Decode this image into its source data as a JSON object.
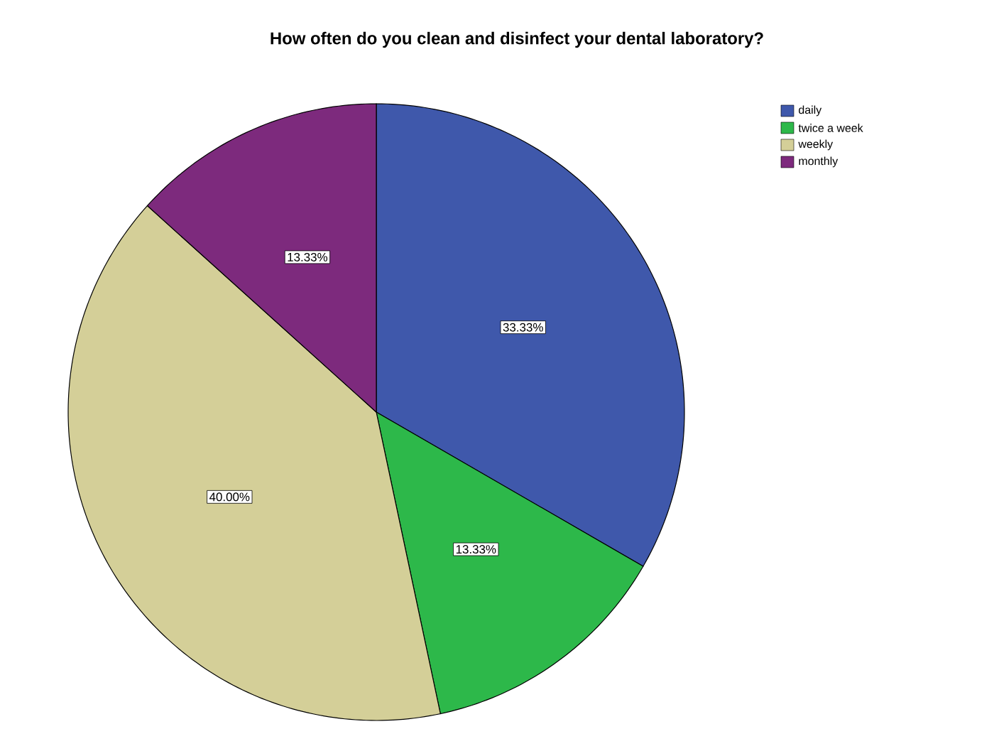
{
  "chart_data": {
    "type": "pie",
    "title": "How often do you clean and disinfect your dental laboratory?",
    "categories": [
      "daily",
      "twice a week",
      "weekly",
      "monthly"
    ],
    "values": [
      33.33,
      13.33,
      40.0,
      13.33
    ],
    "colors": [
      "#3f58ab",
      "#2db84a",
      "#d4cf98",
      "#7d2a7d"
    ],
    "value_labels": [
      "33.33%",
      "13.33%",
      "40.00%",
      "13.33%"
    ],
    "legend": "top right"
  }
}
